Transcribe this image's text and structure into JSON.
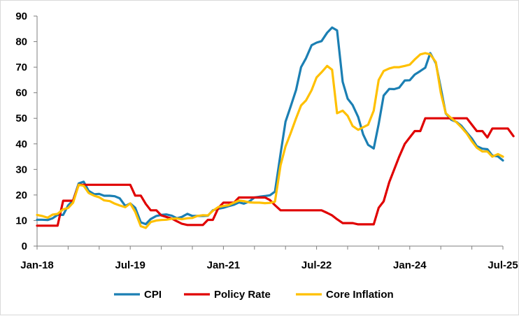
{
  "chart_data": {
    "type": "line",
    "title": "",
    "xlabel": "",
    "ylabel": "",
    "ylim": [
      0,
      90
    ],
    "yticks": [
      "0",
      "10",
      "20",
      "30",
      "40",
      "50",
      "60",
      "70",
      "80",
      "90"
    ],
    "xticks": [
      "Jan-18",
      "Jul-19",
      "Jan-21",
      "Jul-22",
      "Jan-24",
      "Jul-25"
    ],
    "grid": false,
    "legend_position": "bottom",
    "colors": {
      "CPI": "#1b7fb3",
      "Policy Rate": "#e00000",
      "Core Inflation": "#ffc000"
    },
    "series": [
      {
        "name": "CPI",
        "values": [
          [
            2018.0,
            10.3
          ],
          [
            2018.08,
            10.3
          ],
          [
            2018.17,
            10.2
          ],
          [
            2018.25,
            10.9
          ],
          [
            2018.33,
            12.2
          ],
          [
            2018.42,
            12.2
          ],
          [
            2018.5,
            15.9
          ],
          [
            2018.58,
            17.9
          ],
          [
            2018.67,
            24.5
          ],
          [
            2018.75,
            25.2
          ],
          [
            2018.83,
            21.6
          ],
          [
            2018.92,
            20.3
          ],
          [
            2019.0,
            20.4
          ],
          [
            2019.08,
            19.7
          ],
          [
            2019.17,
            19.7
          ],
          [
            2019.25,
            19.5
          ],
          [
            2019.33,
            18.7
          ],
          [
            2019.42,
            15.7
          ],
          [
            2019.5,
            16.7
          ],
          [
            2019.58,
            15.0
          ],
          [
            2019.67,
            9.3
          ],
          [
            2019.75,
            8.6
          ],
          [
            2019.83,
            10.6
          ],
          [
            2019.92,
            11.8
          ],
          [
            2020.0,
            12.2
          ],
          [
            2020.08,
            12.4
          ],
          [
            2020.17,
            11.9
          ],
          [
            2020.25,
            10.9
          ],
          [
            2020.33,
            11.4
          ],
          [
            2020.42,
            12.6
          ],
          [
            2020.5,
            11.8
          ],
          [
            2020.58,
            11.8
          ],
          [
            2020.67,
            11.8
          ],
          [
            2020.75,
            11.9
          ],
          [
            2020.83,
            14.0
          ],
          [
            2020.92,
            14.6
          ],
          [
            2021.0,
            15.0
          ],
          [
            2021.08,
            15.6
          ],
          [
            2021.17,
            16.2
          ],
          [
            2021.25,
            17.1
          ],
          [
            2021.33,
            16.6
          ],
          [
            2021.42,
            17.5
          ],
          [
            2021.5,
            19.0
          ],
          [
            2021.58,
            19.3
          ],
          [
            2021.67,
            19.6
          ],
          [
            2021.75,
            19.9
          ],
          [
            2021.83,
            21.3
          ],
          [
            2021.92,
            36.1
          ],
          [
            2022.0,
            48.7
          ],
          [
            2022.08,
            54.4
          ],
          [
            2022.17,
            61.1
          ],
          [
            2022.25,
            70.0
          ],
          [
            2022.33,
            73.5
          ],
          [
            2022.42,
            78.6
          ],
          [
            2022.5,
            79.6
          ],
          [
            2022.58,
            80.2
          ],
          [
            2022.67,
            83.5
          ],
          [
            2022.75,
            85.5
          ],
          [
            2022.83,
            84.4
          ],
          [
            2022.92,
            64.3
          ],
          [
            2023.0,
            57.7
          ],
          [
            2023.08,
            55.2
          ],
          [
            2023.17,
            50.5
          ],
          [
            2023.25,
            43.7
          ],
          [
            2023.33,
            39.6
          ],
          [
            2023.42,
            38.2
          ],
          [
            2023.5,
            47.8
          ],
          [
            2023.58,
            58.9
          ],
          [
            2023.67,
            61.5
          ],
          [
            2023.75,
            61.4
          ],
          [
            2023.83,
            62.0
          ],
          [
            2023.92,
            64.8
          ],
          [
            2024.0,
            64.9
          ],
          [
            2024.08,
            67.1
          ],
          [
            2024.17,
            68.5
          ],
          [
            2024.25,
            69.8
          ],
          [
            2024.33,
            75.5
          ],
          [
            2024.42,
            71.6
          ],
          [
            2024.5,
            61.8
          ],
          [
            2024.58,
            51.9
          ],
          [
            2024.67,
            49.4
          ],
          [
            2024.75,
            48.6
          ],
          [
            2024.83,
            47.1
          ],
          [
            2024.92,
            44.4
          ],
          [
            2025.0,
            42.1
          ],
          [
            2025.08,
            39.1
          ],
          [
            2025.17,
            38.1
          ],
          [
            2025.25,
            37.9
          ],
          [
            2025.33,
            35.4
          ],
          [
            2025.42,
            35.1
          ],
          [
            2025.5,
            33.5
          ]
        ]
      },
      {
        "name": "Policy Rate",
        "values": [
          [
            2018.0,
            8.0
          ],
          [
            2018.25,
            8.0
          ],
          [
            2018.33,
            8.0
          ],
          [
            2018.42,
            17.75
          ],
          [
            2018.58,
            17.75
          ],
          [
            2018.67,
            24.0
          ],
          [
            2019.5,
            24.0
          ],
          [
            2019.58,
            19.75
          ],
          [
            2019.67,
            19.75
          ],
          [
            2019.75,
            16.5
          ],
          [
            2019.83,
            14.0
          ],
          [
            2019.92,
            14.0
          ],
          [
            2020.0,
            12.0
          ],
          [
            2020.17,
            10.75
          ],
          [
            2020.25,
            9.75
          ],
          [
            2020.33,
            8.75
          ],
          [
            2020.42,
            8.25
          ],
          [
            2020.67,
            8.25
          ],
          [
            2020.75,
            10.25
          ],
          [
            2020.83,
            10.25
          ],
          [
            2020.92,
            15.0
          ],
          [
            2021.0,
            17.0
          ],
          [
            2021.17,
            17.0
          ],
          [
            2021.25,
            19.0
          ],
          [
            2021.67,
            19.0
          ],
          [
            2021.75,
            18.0
          ],
          [
            2021.83,
            16.0
          ],
          [
            2021.92,
            14.0
          ],
          [
            2022.58,
            14.0
          ],
          [
            2022.67,
            13.0
          ],
          [
            2022.75,
            12.0
          ],
          [
            2022.83,
            10.5
          ],
          [
            2022.92,
            9.0
          ],
          [
            2023.08,
            9.0
          ],
          [
            2023.17,
            8.5
          ],
          [
            2023.42,
            8.5
          ],
          [
            2023.5,
            15.0
          ],
          [
            2023.58,
            17.5
          ],
          [
            2023.67,
            25.0
          ],
          [
            2023.83,
            35.0
          ],
          [
            2023.92,
            40.0
          ],
          [
            2024.0,
            42.5
          ],
          [
            2024.08,
            45.0
          ],
          [
            2024.17,
            45.0
          ],
          [
            2024.25,
            50.0
          ],
          [
            2024.92,
            50.0
          ],
          [
            2025.0,
            47.5
          ],
          [
            2025.08,
            45.0
          ],
          [
            2025.17,
            45.0
          ],
          [
            2025.25,
            42.5
          ],
          [
            2025.33,
            46.0
          ],
          [
            2025.42,
            46.0
          ],
          [
            2025.5,
            46.0
          ],
          [
            2025.58,
            46.0
          ],
          [
            2025.67,
            43.0
          ]
        ]
      },
      {
        "name": "Core Inflation",
        "values": [
          [
            2018.0,
            12.2
          ],
          [
            2018.08,
            11.8
          ],
          [
            2018.17,
            11.1
          ],
          [
            2018.25,
            12.3
          ],
          [
            2018.33,
            12.6
          ],
          [
            2018.42,
            14.4
          ],
          [
            2018.5,
            14.9
          ],
          [
            2018.58,
            17.0
          ],
          [
            2018.67,
            24.0
          ],
          [
            2018.75,
            23.6
          ],
          [
            2018.83,
            20.8
          ],
          [
            2018.92,
            19.7
          ],
          [
            2019.0,
            19.1
          ],
          [
            2019.08,
            17.9
          ],
          [
            2019.17,
            17.6
          ],
          [
            2019.25,
            16.6
          ],
          [
            2019.33,
            15.9
          ],
          [
            2019.42,
            15.2
          ],
          [
            2019.5,
            16.7
          ],
          [
            2019.58,
            13.4
          ],
          [
            2019.67,
            7.8
          ],
          [
            2019.75,
            7.1
          ],
          [
            2019.83,
            9.4
          ],
          [
            2019.92,
            10.0
          ],
          [
            2020.0,
            10.2
          ],
          [
            2020.08,
            10.3
          ],
          [
            2020.17,
            10.7
          ],
          [
            2020.25,
            10.8
          ],
          [
            2020.33,
            10.5
          ],
          [
            2020.42,
            10.9
          ],
          [
            2020.5,
            11.0
          ],
          [
            2020.58,
            11.8
          ],
          [
            2020.67,
            12.1
          ],
          [
            2020.75,
            12.0
          ],
          [
            2020.83,
            13.8
          ],
          [
            2020.92,
            15.3
          ],
          [
            2021.0,
            15.7
          ],
          [
            2021.08,
            16.0
          ],
          [
            2021.17,
            17.0
          ],
          [
            2021.25,
            17.8
          ],
          [
            2021.33,
            17.6
          ],
          [
            2021.42,
            17.1
          ],
          [
            2021.5,
            17.0
          ],
          [
            2021.58,
            17.0
          ],
          [
            2021.67,
            16.8
          ],
          [
            2021.75,
            16.9
          ],
          [
            2021.83,
            17.4
          ],
          [
            2021.92,
            31.6
          ],
          [
            2022.0,
            39.0
          ],
          [
            2022.08,
            44.0
          ],
          [
            2022.17,
            50.0
          ],
          [
            2022.25,
            55.0
          ],
          [
            2022.33,
            57.0
          ],
          [
            2022.42,
            61.0
          ],
          [
            2022.5,
            66.0
          ],
          [
            2022.58,
            68.0
          ],
          [
            2022.67,
            70.5
          ],
          [
            2022.75,
            69.0
          ],
          [
            2022.83,
            52.0
          ],
          [
            2022.92,
            53.0
          ],
          [
            2023.0,
            51.0
          ],
          [
            2023.08,
            47.0
          ],
          [
            2023.17,
            45.5
          ],
          [
            2023.25,
            46.5
          ],
          [
            2023.33,
            47.5
          ],
          [
            2023.42,
            53.0
          ],
          [
            2023.5,
            65.0
          ],
          [
            2023.58,
            68.5
          ],
          [
            2023.67,
            69.5
          ],
          [
            2023.75,
            70.0
          ],
          [
            2023.83,
            70.0
          ],
          [
            2023.92,
            70.5
          ],
          [
            2024.0,
            71.0
          ],
          [
            2024.08,
            73.0
          ],
          [
            2024.17,
            75.0
          ],
          [
            2024.25,
            75.5
          ],
          [
            2024.33,
            75.0
          ],
          [
            2024.42,
            72.0
          ],
          [
            2024.5,
            60.0
          ],
          [
            2024.58,
            52.0
          ],
          [
            2024.67,
            50.0
          ],
          [
            2024.75,
            48.5
          ],
          [
            2024.83,
            46.5
          ],
          [
            2024.92,
            44.0
          ],
          [
            2025.0,
            41.0
          ],
          [
            2025.08,
            38.5
          ],
          [
            2025.17,
            37.0
          ],
          [
            2025.25,
            37.0
          ],
          [
            2025.33,
            35.0
          ],
          [
            2025.42,
            36.0
          ],
          [
            2025.5,
            35.0
          ]
        ]
      }
    ]
  }
}
